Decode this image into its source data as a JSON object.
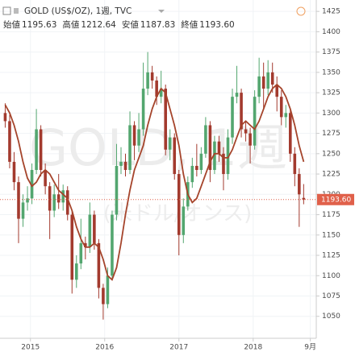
{
  "chart_data": {
    "type": "candlestick",
    "title": "GOLD (US$/OZ), 1週, TVC",
    "ohlc_legend": [
      {
        "label": "始値",
        "value": "1195.63"
      },
      {
        "label": "高値",
        "value": "1212.64"
      },
      {
        "label": "安値",
        "value": "1187.83"
      },
      {
        "label": "終値",
        "value": "1193.60"
      }
    ],
    "watermark": [
      "GOLD, 1週",
      "(米ドル/オンス)"
    ],
    "x": [
      2014.66,
      2014.72,
      2014.78,
      2014.84,
      2014.9,
      2014.96,
      2015.02,
      2015.08,
      2015.14,
      2015.2,
      2015.26,
      2015.32,
      2015.38,
      2015.44,
      2015.5,
      2015.56,
      2015.62,
      2015.68,
      2015.74,
      2015.8,
      2015.86,
      2015.92,
      2015.98,
      2016.04,
      2016.1,
      2016.16,
      2016.22,
      2016.28,
      2016.34,
      2016.4,
      2016.46,
      2016.52,
      2016.58,
      2016.64,
      2016.7,
      2016.76,
      2016.82,
      2016.88,
      2016.94,
      2017.0,
      2017.06,
      2017.12,
      2017.18,
      2017.24,
      2017.3,
      2017.36,
      2017.42,
      2017.48,
      2017.54,
      2017.6,
      2017.66,
      2017.72,
      2017.78,
      2017.84,
      2017.9,
      2017.96,
      2018.02,
      2018.08,
      2018.14,
      2018.2,
      2018.26,
      2018.32,
      2018.38,
      2018.44,
      2018.5,
      2018.56,
      2018.62,
      2018.68
    ],
    "open": [
      1300,
      1290,
      1240,
      1215,
      1170,
      1190,
      1195,
      1230,
      1280,
      1230,
      1210,
      1180,
      1200,
      1190,
      1205,
      1175,
      1095,
      1115,
      1140,
      1135,
      1175,
      1140,
      1085,
      1065,
      1100,
      1175,
      1235,
      1240,
      1230,
      1285,
      1260,
      1280,
      1330,
      1350,
      1340,
      1320,
      1330,
      1255,
      1270,
      1225,
      1150,
      1185,
      1215,
      1235,
      1230,
      1250,
      1285,
      1230,
      1265,
      1250,
      1225,
      1270,
      1320,
      1325,
      1280,
      1275,
      1260,
      1320,
      1345,
      1330,
      1350,
      1335,
      1320,
      1295,
      1300,
      1250,
      1225,
      1195.63
    ],
    "high": [
      1312,
      1298,
      1252,
      1222,
      1200,
      1210,
      1238,
      1305,
      1285,
      1238,
      1215,
      1212,
      1225,
      1212,
      1210,
      1180,
      1125,
      1170,
      1148,
      1190,
      1180,
      1145,
      1090,
      1110,
      1180,
      1262,
      1258,
      1250,
      1302,
      1290,
      1300,
      1362,
      1375,
      1358,
      1345,
      1352,
      1335,
      1280,
      1275,
      1230,
      1195,
      1222,
      1245,
      1262,
      1258,
      1295,
      1290,
      1272,
      1272,
      1258,
      1280,
      1330,
      1358,
      1330,
      1290,
      1282,
      1328,
      1368,
      1362,
      1365,
      1362,
      1345,
      1328,
      1310,
      1305,
      1258,
      1232,
      1212.64
    ],
    "low": [
      1282,
      1232,
      1205,
      1140,
      1160,
      1180,
      1188,
      1225,
      1222,
      1200,
      1145,
      1172,
      1182,
      1180,
      1168,
      1078,
      1085,
      1108,
      1120,
      1128,
      1132,
      1072,
      1046,
      1060,
      1095,
      1168,
      1225,
      1222,
      1225,
      1242,
      1252,
      1272,
      1322,
      1330,
      1310,
      1312,
      1248,
      1242,
      1218,
      1125,
      1140,
      1180,
      1208,
      1222,
      1225,
      1245,
      1215,
      1225,
      1240,
      1205,
      1218,
      1262,
      1312,
      1270,
      1265,
      1238,
      1255,
      1312,
      1305,
      1322,
      1325,
      1302,
      1285,
      1282,
      1240,
      1210,
      1160,
      1187.83
    ],
    "close": [
      1290,
      1240,
      1215,
      1170,
      1190,
      1195,
      1230,
      1280,
      1230,
      1210,
      1180,
      1200,
      1190,
      1205,
      1175,
      1095,
      1115,
      1140,
      1135,
      1175,
      1140,
      1085,
      1065,
      1100,
      1175,
      1235,
      1240,
      1230,
      1285,
      1260,
      1280,
      1330,
      1350,
      1340,
      1320,
      1330,
      1255,
      1270,
      1225,
      1150,
      1185,
      1215,
      1235,
      1230,
      1250,
      1285,
      1230,
      1265,
      1250,
      1225,
      1270,
      1320,
      1325,
      1280,
      1275,
      1260,
      1320,
      1345,
      1330,
      1350,
      1335,
      1320,
      1295,
      1300,
      1250,
      1225,
      1200,
      1193.6
    ],
    "ma": [
      1310,
      1300,
      1285,
      1265,
      1240,
      1220,
      1210,
      1215,
      1225,
      1230,
      1225,
      1215,
      1205,
      1200,
      1195,
      1180,
      1160,
      1145,
      1135,
      1135,
      1140,
      1135,
      1120,
      1100,
      1095,
      1110,
      1140,
      1175,
      1205,
      1230,
      1245,
      1260,
      1285,
      1305,
      1320,
      1330,
      1325,
      1305,
      1285,
      1260,
      1225,
      1200,
      1190,
      1195,
      1210,
      1225,
      1240,
      1250,
      1250,
      1245,
      1245,
      1255,
      1270,
      1285,
      1290,
      1285,
      1280,
      1290,
      1305,
      1320,
      1330,
      1335,
      1330,
      1320,
      1305,
      1285,
      1260,
      1240
    ],
    "ma_color": "#a5442b",
    "up_color": "#53a66f",
    "down_color": "#a33a2e",
    "last_price": {
      "value": 1193.6,
      "label": "1193.60"
    },
    "last_price_color": "#e0604a",
    "xlim": [
      2014.59,
      2018.85
    ],
    "xticks": [
      {
        "value": 2015,
        "label": "2015"
      },
      {
        "value": 2016,
        "label": "2016"
      },
      {
        "value": 2017,
        "label": "2017"
      },
      {
        "value": 2018,
        "label": "2018"
      },
      {
        "value": 2018.77,
        "label": "9月"
      }
    ],
    "ylim": [
      1023,
      1439
    ],
    "yticks": [
      1050,
      1075,
      1100,
      1125,
      1150,
      1175,
      1200,
      1225,
      1250,
      1275,
      1300,
      1325,
      1350,
      1375,
      1400,
      1425
    ],
    "grid": true
  }
}
